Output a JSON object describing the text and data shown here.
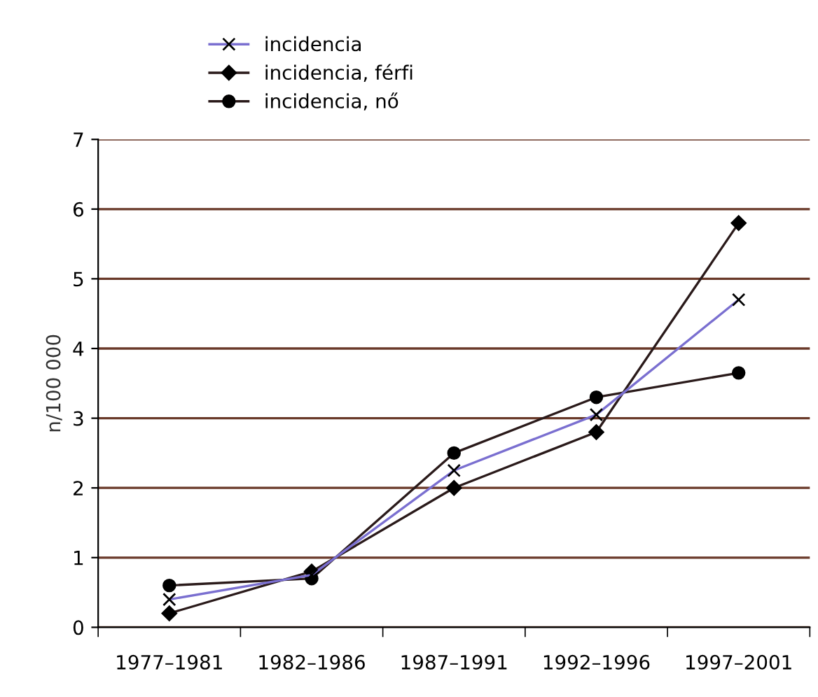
{
  "chart_data": {
    "type": "line",
    "ylabel": "n/100 000",
    "categories": [
      "1977–1981",
      "1982–1986",
      "1987–1991",
      "1992–1996",
      "1997–2001"
    ],
    "series": [
      {
        "name": "incidencia",
        "color": "#7a6fd0",
        "marker": "cross",
        "values": [
          0.4,
          0.75,
          2.25,
          3.05,
          4.7
        ]
      },
      {
        "name": "incidencia, férfi",
        "color": "#2a1a1a",
        "marker": "diamond",
        "values": [
          0.2,
          0.8,
          2.0,
          2.8,
          5.8
        ]
      },
      {
        "name": "incidencia, nő",
        "color": "#2a1a1a",
        "marker": "circle",
        "values": [
          0.6,
          0.7,
          2.5,
          3.3,
          3.65
        ]
      }
    ],
    "ylim": [
      0,
      7
    ],
    "yticks": [
      0,
      1,
      2,
      3,
      4,
      5,
      6,
      7
    ],
    "grid": "y",
    "legend": "top"
  }
}
